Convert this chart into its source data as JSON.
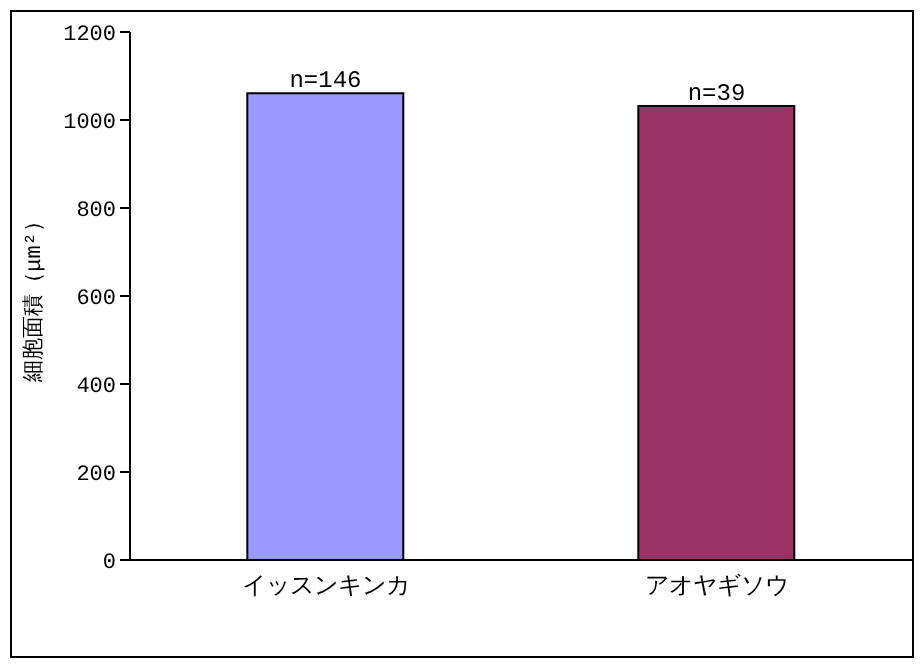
{
  "chart_data": {
    "type": "bar",
    "ylabel": "細胞面積（μm²）",
    "categories": [
      "イッスンキンカ",
      "アオヤギソウ"
    ],
    "values": [
      1061,
      1032
    ],
    "colors": [
      "#9999ff",
      "#993366"
    ],
    "annotations": [
      {
        "text": "n=146",
        "x": "イッスンキンカ",
        "y": 1061
      },
      {
        "text": "n=39",
        "x": "アオヤギソウ",
        "y": 1032
      }
    ],
    "ylim": [
      0,
      1200
    ],
    "yticks": [
      0,
      200,
      400,
      600,
      800,
      1000,
      1200
    ],
    "grid": false,
    "legend": false
  }
}
